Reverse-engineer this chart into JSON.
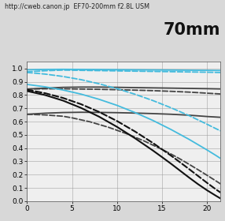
{
  "title_top": "http://cweb.canon.jp  EF70-200mm f2.8L USM",
  "title_focal": "70mm",
  "xlim": [
    0,
    21.5
  ],
  "ylim": [
    0,
    1.05
  ],
  "xticks": [
    0,
    5,
    10,
    15,
    20
  ],
  "yticks": [
    0.1,
    0.2,
    0.3,
    0.4,
    0.5,
    0.6,
    0.7,
    0.8,
    0.9,
    1
  ],
  "yticks_with_zero": [
    0,
    0.1,
    0.2,
    0.3,
    0.4,
    0.5,
    0.6,
    0.7,
    0.8,
    0.9,
    1
  ],
  "curves": [
    {
      "x": [
        0,
        2,
        4,
        6,
        8,
        10,
        12,
        14,
        16,
        18,
        20,
        21.5
      ],
      "y": [
        0.99,
        0.993,
        0.994,
        0.993,
        0.992,
        0.991,
        0.99,
        0.989,
        0.988,
        0.987,
        0.986,
        0.985
      ],
      "color": "#44bbdd",
      "lw": 1.3,
      "ls": "-"
    },
    {
      "x": [
        0,
        2,
        4,
        6,
        8,
        10,
        12,
        14,
        16,
        18,
        20,
        21.5
      ],
      "y": [
        0.975,
        0.983,
        0.988,
        0.986,
        0.984,
        0.982,
        0.98,
        0.978,
        0.976,
        0.974,
        0.972,
        0.97
      ],
      "color": "#44bbdd",
      "lw": 1.3,
      "ls": "--"
    },
    {
      "x": [
        0,
        2,
        4,
        6,
        8,
        10,
        12,
        14,
        16,
        18,
        20,
        21.5
      ],
      "y": [
        0.845,
        0.852,
        0.858,
        0.86,
        0.86,
        0.858,
        0.856,
        0.854,
        0.852,
        0.85,
        0.848,
        0.846
      ],
      "color": "#444444",
      "lw": 1.3,
      "ls": "-"
    },
    {
      "x": [
        0,
        2,
        4,
        6,
        8,
        10,
        12,
        14,
        16,
        18,
        20,
        21.5
      ],
      "y": [
        0.845,
        0.847,
        0.847,
        0.845,
        0.843,
        0.84,
        0.837,
        0.833,
        0.828,
        0.822,
        0.814,
        0.808
      ],
      "color": "#444444",
      "lw": 1.3,
      "ls": "--"
    },
    {
      "x": [
        0,
        2,
        4,
        6,
        8,
        10,
        12,
        14,
        16,
        18,
        20,
        21.5
      ],
      "y": [
        0.655,
        0.663,
        0.668,
        0.67,
        0.669,
        0.667,
        0.664,
        0.66,
        0.655,
        0.648,
        0.638,
        0.632
      ],
      "color": "#444444",
      "lw": 1.3,
      "ls": "-"
    },
    {
      "x": [
        0,
        2,
        4,
        5,
        7,
        9,
        11,
        13,
        15,
        16,
        17,
        18,
        19,
        20,
        21,
        21.5
      ],
      "y": [
        0.655,
        0.65,
        0.64,
        0.628,
        0.598,
        0.558,
        0.51,
        0.454,
        0.39,
        0.355,
        0.318,
        0.278,
        0.237,
        0.195,
        0.152,
        0.13
      ],
      "color": "#444444",
      "lw": 1.3,
      "ls": "--"
    },
    {
      "x": [
        0,
        2,
        4,
        6,
        8,
        10,
        12,
        14,
        16,
        18,
        20,
        21,
        21.5
      ],
      "y": [
        0.97,
        0.958,
        0.94,
        0.916,
        0.885,
        0.848,
        0.806,
        0.758,
        0.704,
        0.645,
        0.58,
        0.546,
        0.53
      ],
      "color": "#44bbdd",
      "lw": 1.3,
      "ls": "--"
    },
    {
      "x": [
        0,
        2,
        4,
        6,
        8,
        10,
        12,
        14,
        16,
        18,
        20,
        21,
        21.5
      ],
      "y": [
        0.88,
        0.862,
        0.838,
        0.807,
        0.768,
        0.722,
        0.668,
        0.608,
        0.54,
        0.466,
        0.386,
        0.344,
        0.322
      ],
      "color": "#44bbdd",
      "lw": 1.3,
      "ls": "-"
    },
    {
      "x": [
        0,
        2,
        4,
        6,
        8,
        10,
        12,
        14,
        16,
        17,
        18,
        19,
        20,
        21,
        21.5
      ],
      "y": [
        0.84,
        0.814,
        0.778,
        0.731,
        0.673,
        0.604,
        0.525,
        0.438,
        0.343,
        0.293,
        0.242,
        0.19,
        0.138,
        0.088,
        0.065
      ],
      "color": "#111111",
      "lw": 1.5,
      "ls": "--"
    },
    {
      "x": [
        0,
        2,
        4,
        6,
        8,
        10,
        12,
        14,
        15,
        16,
        17,
        18,
        19,
        20,
        21,
        21.5
      ],
      "y": [
        0.83,
        0.8,
        0.758,
        0.703,
        0.637,
        0.56,
        0.474,
        0.381,
        0.332,
        0.282,
        0.23,
        0.178,
        0.128,
        0.082,
        0.04,
        0.02
      ],
      "color": "#111111",
      "lw": 1.5,
      "ls": "-"
    }
  ],
  "fig_bg": "#d8d8d8",
  "ax_bg": "#efefef"
}
